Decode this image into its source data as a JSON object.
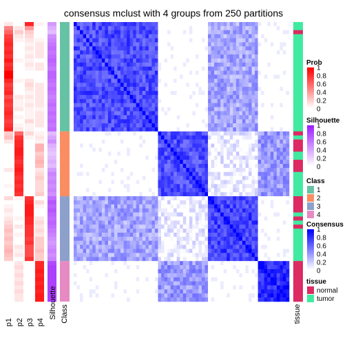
{
  "chart_data": {
    "type": "heatmap",
    "title": "consensus mclust with 4 groups from 250 partitions",
    "n_samples": 69,
    "class_order": [
      1,
      2,
      3,
      4
    ],
    "class_counts": [
      27,
      16,
      16,
      10
    ],
    "class_colors": {
      "1": "#66c2a5",
      "2": "#fc8d62",
      "3": "#8da0cb",
      "4": "#e78ac3"
    },
    "tissue_colors": {
      "normal": "#dc2a62",
      "tumor": "#40eaa0"
    },
    "column_labels": {
      "p1": "p1",
      "p2": "p2",
      "p3": "p3",
      "p4": "p4",
      "silhouette": "Silhouette",
      "class": "Class",
      "tissue": "tissue"
    },
    "prob": {
      "p1": [
        0.1,
        0.5,
        0.6,
        0.75,
        0.8,
        0.85,
        0.8,
        0.85,
        0.8,
        0.9,
        0.8,
        0.85,
        1,
        1,
        0.85,
        0.75,
        0.8,
        0.85,
        0.7,
        0.8,
        0.75,
        0.8,
        0.85,
        0.8,
        0.75,
        0.8,
        0.85,
        0.2,
        0.25,
        0.1,
        0,
        0,
        0,
        0,
        0,
        0,
        0.1,
        0,
        0,
        0,
        0.05,
        0,
        0,
        0.15,
        0,
        0.05,
        0.1,
        0.05,
        0.1,
        0.15,
        0.2,
        0.25,
        0.2,
        0.25,
        0.2,
        0.25,
        0.3,
        0.25,
        0.2,
        0,
        0,
        0,
        0,
        0,
        0,
        0,
        0,
        0,
        0
      ],
      "p2": [
        0,
        0.1,
        0.2,
        0.1,
        0.05,
        0,
        0,
        0,
        0,
        0.05,
        0,
        0,
        0,
        0,
        0.05,
        0,
        0,
        0,
        0.1,
        0.05,
        0.05,
        0.1,
        0,
        0.05,
        0,
        0.05,
        0.1,
        0.6,
        0.8,
        0.85,
        0.85,
        0.9,
        0.9,
        0.85,
        0.8,
        0.85,
        0.9,
        0.85,
        0.8,
        0.85,
        0.8,
        0.85,
        0.8,
        0.05,
        0,
        0,
        0,
        0,
        0.05,
        0,
        0.1,
        0,
        0.05,
        0,
        0,
        0.1,
        0.05,
        0.1,
        0,
        0.1,
        0.15,
        0.1,
        0.15,
        0.1,
        0.15,
        0.1,
        0.15,
        0.1,
        0.1
      ],
      "p3": [
        0.85,
        0.4,
        0.2,
        0.15,
        0.1,
        0.05,
        0.1,
        0.05,
        0.1,
        0.05,
        0.1,
        0.05,
        0,
        0,
        0.1,
        0.15,
        0.1,
        0.05,
        0.1,
        0.05,
        0.1,
        0.05,
        0.05,
        0.05,
        0.15,
        0.05,
        0.05,
        0.15,
        0.05,
        0,
        0,
        0,
        0,
        0,
        0,
        0,
        0,
        0,
        0,
        0,
        0,
        0,
        0,
        0.8,
        0.85,
        0.9,
        0.9,
        0.9,
        0.85,
        0.85,
        0.8,
        0.8,
        0.8,
        0.75,
        0.8,
        0.7,
        0.7,
        0.7,
        0.8,
        0,
        0,
        0,
        0,
        0,
        0,
        0,
        0,
        0,
        0
      ],
      "p4": [
        0.05,
        0,
        0,
        0,
        0.05,
        0.1,
        0.1,
        0.1,
        0.1,
        0,
        0.1,
        0.1,
        0,
        0,
        0,
        0.1,
        0.1,
        0.1,
        0.1,
        0.1,
        0.1,
        0.05,
        0.1,
        0.1,
        0.1,
        0.1,
        0,
        0.05,
        0.1,
        0.05,
        0.3,
        0.3,
        0.2,
        0.25,
        0.3,
        0.25,
        0.1,
        0.15,
        0.2,
        0.15,
        0.15,
        0.15,
        0.2,
        0,
        0.15,
        0.05,
        0,
        0,
        0.1,
        0.15,
        0.1,
        0.15,
        0.1,
        0.2,
        0.2,
        0.2,
        0.25,
        0.2,
        0.2,
        0.85,
        0.85,
        0.9,
        0.85,
        0.9,
        0.85,
        0.9,
        0.85,
        0.9,
        0.9
      ]
    },
    "silhouette": [
      0.45,
      0.35,
      0.3,
      0.5,
      0.55,
      0.6,
      0.65,
      0.6,
      0.65,
      0.7,
      0.65,
      0.6,
      0.7,
      0.7,
      0.65,
      0.6,
      0.65,
      0.6,
      0.55,
      0.6,
      0.65,
      0.6,
      0.65,
      0.6,
      0.65,
      0.6,
      0.65,
      0.3,
      0.4,
      0.5,
      0.35,
      0.3,
      0.25,
      0.3,
      0.35,
      0.3,
      0.45,
      0.55,
      0.5,
      0.55,
      0.5,
      0.55,
      0.5,
      0.65,
      0.75,
      0.7,
      0.75,
      0.7,
      0.65,
      0.7,
      0.65,
      0.6,
      0.55,
      0.5,
      0.45,
      0.5,
      0.55,
      0.5,
      0.55,
      0.8,
      0.85,
      0.85,
      0.85,
      0.85,
      0.85,
      0.85,
      0.85,
      0.85,
      0.85
    ],
    "tissue": [
      "tumor",
      "tumor",
      "normal",
      "tumor",
      "tumor",
      "tumor",
      "tumor",
      "tumor",
      "tumor",
      "tumor",
      "tumor",
      "tumor",
      "tumor",
      "tumor",
      "tumor",
      "tumor",
      "tumor",
      "tumor",
      "tumor",
      "tumor",
      "tumor",
      "tumor",
      "tumor",
      "tumor",
      "tumor",
      "tumor",
      "tumor",
      "normal",
      "tumor",
      "normal",
      "normal",
      "normal",
      "tumor",
      "tumor",
      "normal",
      "normal",
      "normal",
      "tumor",
      "tumor",
      "tumor",
      "tumor",
      "tumor",
      "tumor",
      "normal",
      "normal",
      "normal",
      "normal",
      "tumor",
      "normal",
      "tumor",
      "normal",
      "tumor",
      "tumor",
      "tumor",
      "tumor",
      "tumor",
      "tumor",
      "tumor",
      "tumor",
      "normal",
      "normal",
      "normal",
      "normal",
      "normal",
      "normal",
      "normal",
      "normal",
      "normal",
      "normal"
    ],
    "legends": {
      "prob": {
        "title": "Prob",
        "ticks": [
          "1",
          "0.8",
          "0.6",
          "0.4",
          "0.2",
          "0"
        ],
        "color_high": "#ff0000",
        "color_low": "#ffffff"
      },
      "silhouette": {
        "title": "Silhouette",
        "ticks": [
          "1",
          "0.8",
          "0.6",
          "0.4",
          "0.2",
          "0"
        ],
        "color_high": "#9e1eff",
        "color_low": "#ffffff"
      },
      "class": {
        "title": "Class",
        "labels": [
          "1",
          "2",
          "3",
          "4"
        ]
      },
      "consensus": {
        "title": "Consensus",
        "ticks": [
          "1",
          "0.8",
          "0.6",
          "0.4",
          "0.2",
          "0"
        ],
        "color_high": "#0000ff",
        "color_low": "#ffffff"
      },
      "tissue": {
        "title": "tissue",
        "labels": [
          "normal",
          "tumor"
        ]
      }
    },
    "consensus_blocks": [
      [
        0.7,
        0.0,
        0.35,
        0.0
      ],
      [
        0.0,
        0.7,
        0.05,
        0.4
      ],
      [
        0.35,
        0.05,
        0.75,
        0.0
      ],
      [
        0.0,
        0.4,
        0.0,
        0.85
      ]
    ]
  }
}
